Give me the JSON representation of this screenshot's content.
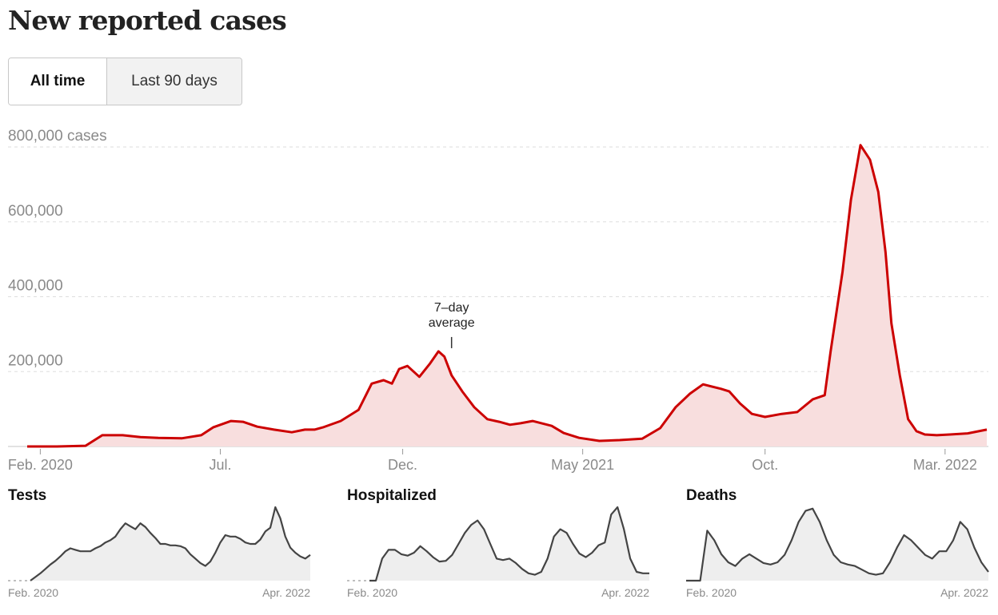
{
  "header": {
    "title": "New reported cases"
  },
  "toggle": {
    "options": [
      {
        "label": "All time",
        "active": true
      },
      {
        "label": "Last 90 days",
        "active": false
      }
    ]
  },
  "colors": {
    "line": "#cc0000",
    "fill": "#f8dede",
    "grid": "#dddddd",
    "axis_text": "#8a8a8a",
    "spark_line": "#444444",
    "spark_fill": "#eeeeee"
  },
  "chart_data": [
    {
      "type": "area",
      "title": "New reported cases",
      "ylabel": "cases",
      "ylim": [
        0,
        800000
      ],
      "yticks": [
        200000,
        400000,
        600000,
        800000
      ],
      "ytick_labels": [
        "200,000",
        "400,000",
        "600,000",
        "800,000 cases"
      ],
      "xlim": [
        "2020-01-21",
        "2022-04-05"
      ],
      "xticks": [
        "Feb. 2020",
        "Jul.",
        "Dec.",
        "May 2021",
        "Oct.",
        "Mar. 2022"
      ],
      "xtick_dates": [
        "2020-02-01",
        "2020-07-01",
        "2020-12-01",
        "2021-05-01",
        "2021-10-01",
        "2022-03-01"
      ],
      "grid": true,
      "annotation": {
        "line1": "7–day",
        "line2": "average",
        "date": "2021-01-11",
        "value": 254000
      },
      "series": [
        {
          "name": "7-day average",
          "x": [
            "2020-01-21",
            "2020-02-15",
            "2020-03-10",
            "2020-03-24",
            "2020-04-10",
            "2020-04-25",
            "2020-05-10",
            "2020-05-30",
            "2020-06-15",
            "2020-06-25",
            "2020-07-10",
            "2020-07-20",
            "2020-08-01",
            "2020-08-15",
            "2020-08-30",
            "2020-09-10",
            "2020-09-18",
            "2020-09-25",
            "2020-10-10",
            "2020-10-25",
            "2020-11-05",
            "2020-11-15",
            "2020-11-22",
            "2020-11-28",
            "2020-12-05",
            "2020-12-15",
            "2020-12-24",
            "2020-12-31",
            "2021-01-05",
            "2021-01-11",
            "2021-01-20",
            "2021-01-30",
            "2021-02-10",
            "2021-02-20",
            "2021-03-01",
            "2021-03-10",
            "2021-03-20",
            "2021-04-05",
            "2021-04-15",
            "2021-04-28",
            "2021-05-15",
            "2021-06-01",
            "2021-06-20",
            "2021-07-05",
            "2021-07-18",
            "2021-07-30",
            "2021-08-10",
            "2021-08-25",
            "2021-09-01",
            "2021-09-10",
            "2021-09-20",
            "2021-10-01",
            "2021-10-15",
            "2021-10-28",
            "2021-11-10",
            "2021-11-20",
            "2021-11-25",
            "2021-12-05",
            "2021-12-12",
            "2021-12-20",
            "2021-12-28",
            "2022-01-04",
            "2022-01-10",
            "2022-01-15",
            "2022-01-22",
            "2022-01-29",
            "2022-02-05",
            "2022-02-12",
            "2022-02-22",
            "2022-03-05",
            "2022-03-20",
            "2022-04-05"
          ],
          "values": [
            0,
            0,
            2000,
            30000,
            30000,
            25000,
            23000,
            22000,
            30000,
            51000,
            68000,
            66000,
            53000,
            45000,
            38000,
            45000,
            45000,
            51000,
            68000,
            98000,
            168000,
            177000,
            168000,
            207000,
            215000,
            186000,
            222000,
            254000,
            240000,
            190000,
            147000,
            105000,
            73000,
            66000,
            58000,
            62000,
            68000,
            55000,
            36000,
            23000,
            15000,
            17000,
            21000,
            49000,
            105000,
            141000,
            166000,
            154000,
            147000,
            115000,
            87000,
            79000,
            87000,
            92000,
            126000,
            137000,
            254000,
            467000,
            659000,
            805000,
            766000,
            680000,
            520000,
            329000,
            190000,
            73000,
            41000,
            32000,
            30000,
            32000,
            35000,
            45000
          ]
        }
      ]
    },
    {
      "type": "area",
      "title": "Tests",
      "xtick_labels": [
        "Feb. 2020",
        "Apr. 2022"
      ],
      "series": [
        {
          "name": "Tests",
          "values": [
            0,
            0.05,
            0.1,
            0.16,
            0.22,
            0.27,
            0.33,
            0.4,
            0.44,
            0.42,
            0.4,
            0.4,
            0.4,
            0.44,
            0.47,
            0.52,
            0.55,
            0.6,
            0.7,
            0.78,
            0.74,
            0.7,
            0.78,
            0.73,
            0.65,
            0.58,
            0.5,
            0.5,
            0.48,
            0.48,
            0.47,
            0.44,
            0.36,
            0.3,
            0.24,
            0.2,
            0.26,
            0.38,
            0.52,
            0.62,
            0.6,
            0.6,
            0.57,
            0.52,
            0.5,
            0.5,
            0.56,
            0.67,
            0.72,
            1.0,
            0.85,
            0.6,
            0.45,
            0.38,
            0.33,
            0.3,
            0.35
          ]
        }
      ]
    },
    {
      "type": "area",
      "title": "Hospitalized",
      "xtick_labels": [
        "Feb. 2020",
        "Apr. 2022"
      ],
      "series": [
        {
          "name": "Hospitalized",
          "values": [
            0,
            0,
            0.3,
            0.42,
            0.42,
            0.36,
            0.34,
            0.38,
            0.47,
            0.4,
            0.32,
            0.26,
            0.27,
            0.35,
            0.5,
            0.65,
            0.76,
            0.82,
            0.7,
            0.5,
            0.3,
            0.28,
            0.3,
            0.24,
            0.16,
            0.1,
            0.08,
            0.12,
            0.3,
            0.6,
            0.7,
            0.65,
            0.5,
            0.37,
            0.32,
            0.38,
            0.48,
            0.52,
            0.9,
            1.0,
            0.7,
            0.3,
            0.12,
            0.1,
            0.1
          ]
        }
      ]
    },
    {
      "type": "area",
      "title": "Deaths",
      "xtick_labels": [
        "Feb. 2020",
        "Apr. 2022"
      ],
      "series": [
        {
          "name": "Deaths",
          "values": [
            0,
            0,
            0,
            0.68,
            0.55,
            0.36,
            0.25,
            0.2,
            0.3,
            0.36,
            0.3,
            0.24,
            0.22,
            0.25,
            0.35,
            0.55,
            0.8,
            0.95,
            0.98,
            0.8,
            0.55,
            0.35,
            0.25,
            0.22,
            0.2,
            0.15,
            0.1,
            0.08,
            0.1,
            0.25,
            0.45,
            0.62,
            0.55,
            0.45,
            0.35,
            0.3,
            0.4,
            0.4,
            0.55,
            0.8,
            0.7,
            0.45,
            0.25,
            0.12
          ]
        }
      ]
    }
  ]
}
